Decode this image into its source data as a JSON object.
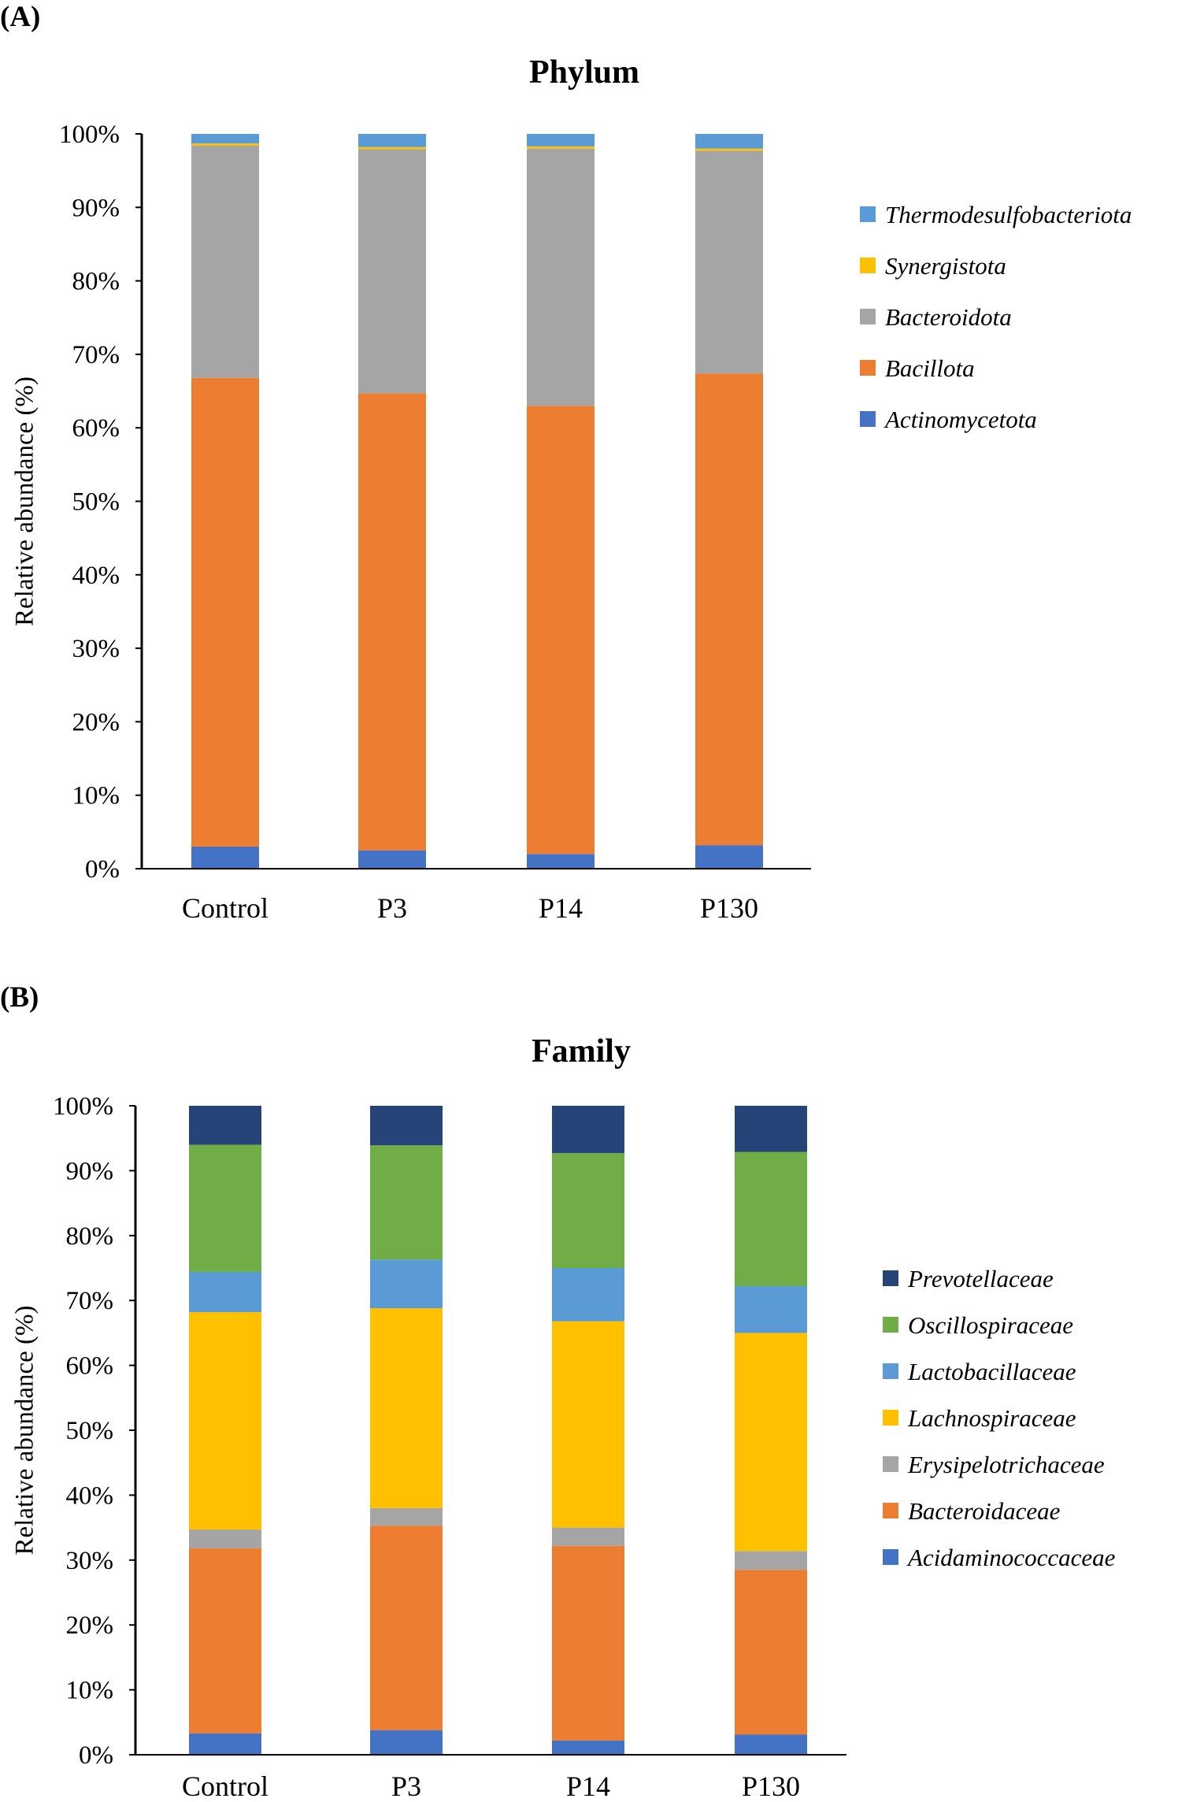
{
  "panels": [
    {
      "label": "(A)"
    },
    {
      "label": "(B)"
    }
  ],
  "chart_data": [
    {
      "type": "bar",
      "stacked": true,
      "title": "Phylum",
      "xlabel": "",
      "ylabel": "Relative abundance  (%)",
      "ylim": [
        0,
        100
      ],
      "yticks": [
        "0%",
        "10%",
        "20%",
        "30%",
        "40%",
        "50%",
        "60%",
        "70%",
        "80%",
        "90%",
        "100%"
      ],
      "categories": [
        "Control",
        "P3",
        "P14",
        "P130"
      ],
      "series": [
        {
          "name": "Actinomycetota",
          "color": "#4472C4",
          "values": [
            3.0,
            2.5,
            2.0,
            3.2
          ]
        },
        {
          "name": "Bacillota",
          "color": "#ED7D31",
          "values": [
            63.8,
            62.2,
            61.0,
            64.2
          ]
        },
        {
          "name": "Bacteroidota",
          "color": "#A5A5A5",
          "values": [
            31.6,
            33.2,
            35.0,
            30.3
          ]
        },
        {
          "name": "Synergistota",
          "color": "#FFC000",
          "values": [
            0.3,
            0.3,
            0.3,
            0.3
          ]
        },
        {
          "name": "Thermodesulfobacteriota",
          "color": "#5B9BD5",
          "values": [
            1.3,
            1.8,
            1.7,
            2.0
          ]
        }
      ],
      "legend_position": "right"
    },
    {
      "type": "bar",
      "stacked": true,
      "title": "Family",
      "xlabel": "",
      "ylabel": "Relative abundance  (%)",
      "ylim": [
        0,
        100
      ],
      "yticks": [
        "0%",
        "10%",
        "20%",
        "30%",
        "40%",
        "50%",
        "60%",
        "70%",
        "80%",
        "90%",
        "100%"
      ],
      "categories": [
        "Control",
        "P3",
        "P14",
        "P130"
      ],
      "series": [
        {
          "name": "Acidaminococcaceae",
          "color": "#4472C4",
          "values": [
            3.3,
            3.8,
            2.2,
            3.1
          ]
        },
        {
          "name": "Bacteroidaceae",
          "color": "#ED7D31",
          "values": [
            28.5,
            31.5,
            30.0,
            25.4
          ]
        },
        {
          "name": "Erysipelotrichaceae",
          "color": "#A5A5A5",
          "values": [
            2.9,
            2.7,
            2.8,
            2.9
          ]
        },
        {
          "name": "Lachnospiraceae",
          "color": "#FFC000",
          "values": [
            33.5,
            30.8,
            31.8,
            33.6
          ]
        },
        {
          "name": "Lactobacillaceae",
          "color": "#5B9BD5",
          "values": [
            6.2,
            7.5,
            8.2,
            7.2
          ]
        },
        {
          "name": "Oscillospiraceae",
          "color": "#70AD47",
          "values": [
            19.6,
            17.6,
            17.7,
            20.7
          ]
        },
        {
          "name": "Prevotellaceae",
          "color": "#264478",
          "values": [
            6.0,
            6.1,
            7.3,
            7.1
          ]
        }
      ],
      "legend_position": "right"
    }
  ]
}
